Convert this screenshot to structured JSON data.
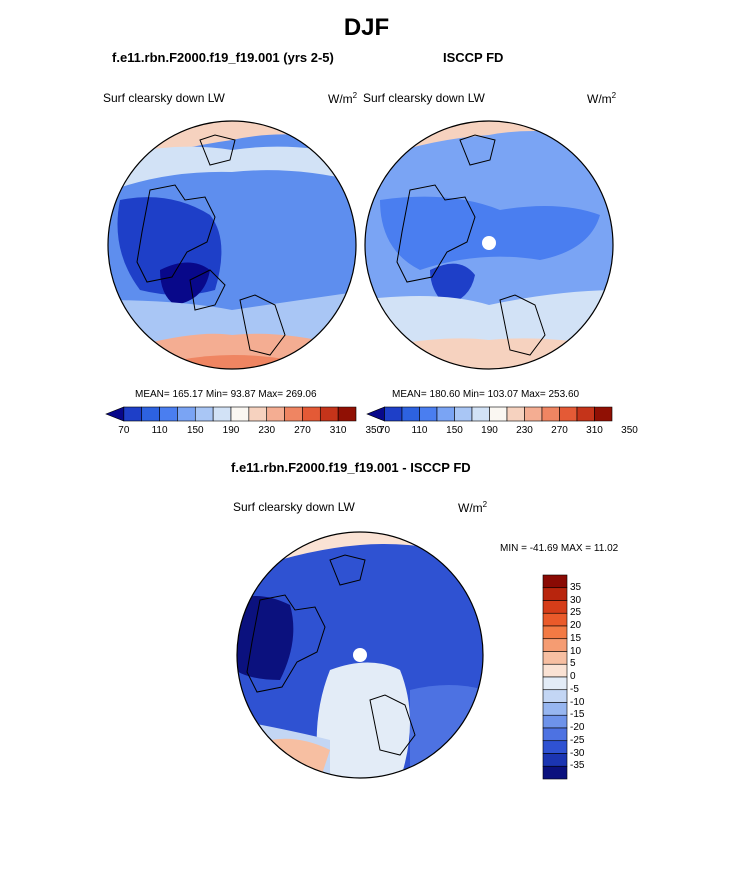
{
  "page": {
    "season": "DJF"
  },
  "chart_data": [
    {
      "type": "polar-contour-map",
      "projection": "north-polar-stereographic",
      "title": "f.e11.rbn.F2000.f19_f19.001 (yrs 2-5)",
      "variable": "Surf clearsky down LW",
      "units": "W/m",
      "units_exp": "2",
      "stats": {
        "mean": "165.17",
        "min": "93.87",
        "max": "269.06"
      },
      "stats_text": "MEAN= 165.17  Min=  93.87  Max= 269.06",
      "colorbar": {
        "ticks": [
          "70",
          "110",
          "150",
          "190",
          "230",
          "270",
          "310",
          "350"
        ],
        "n_bins": 10,
        "colors": [
          "#08088a",
          "#1e3fc8",
          "#2d62e0",
          "#4a7ef0",
          "#7aa4f4",
          "#a9c6f5",
          "#d2e2f6",
          "#faf7f2",
          "#f6d2bf",
          "#f4ad92",
          "#ef8562",
          "#e45a36",
          "#c5341a",
          "#901004"
        ]
      },
      "annotation": {
        "polar_mask_dot": false
      }
    },
    {
      "type": "polar-contour-map",
      "projection": "north-polar-stereographic",
      "title": "ISCCP FD",
      "variable": "Surf clearsky down LW",
      "units": "W/m",
      "units_exp": "2",
      "stats": {
        "mean": "180.60",
        "min": "103.07",
        "max": "253.60"
      },
      "stats_text": "MEAN= 180.60  Min= 103.07  Max= 253.60",
      "colorbar": {
        "ticks": [
          "70",
          "110",
          "150",
          "190",
          "230",
          "270",
          "310",
          "350"
        ],
        "n_bins": 10
      },
      "annotation": {
        "polar_mask_dot": true
      }
    },
    {
      "type": "polar-contour-map",
      "projection": "north-polar-stereographic",
      "title": "f.e11.rbn.F2000.f19_f19.001 - ISCCP FD",
      "variable": "Surf clearsky down LW",
      "units": "W/m",
      "units_exp": "2",
      "stats": {
        "min": "-41.69",
        "max": "11.02"
      },
      "stats_text": "MIN = -41.69 MAX =  11.02",
      "colorbar": {
        "orientation": "vertical",
        "ticks": [
          "35",
          "30",
          "25",
          "20",
          "15",
          "10",
          "5",
          "0",
          "-5",
          "-10",
          "-15",
          "-20",
          "-25",
          "-30",
          "-35"
        ],
        "colors": [
          "#8a0a04",
          "#b8250d",
          "#d63d19",
          "#ea5a2a",
          "#f37a44",
          "#f59c72",
          "#f7bfa2",
          "#fae2d4",
          "#e3ecf7",
          "#c3d6f4",
          "#97b6f0",
          "#6e93ea",
          "#4d72e2",
          "#2f52d2",
          "#1b35b2",
          "#0b117e"
        ]
      },
      "annotation": {
        "polar_mask_dot": true
      }
    }
  ]
}
